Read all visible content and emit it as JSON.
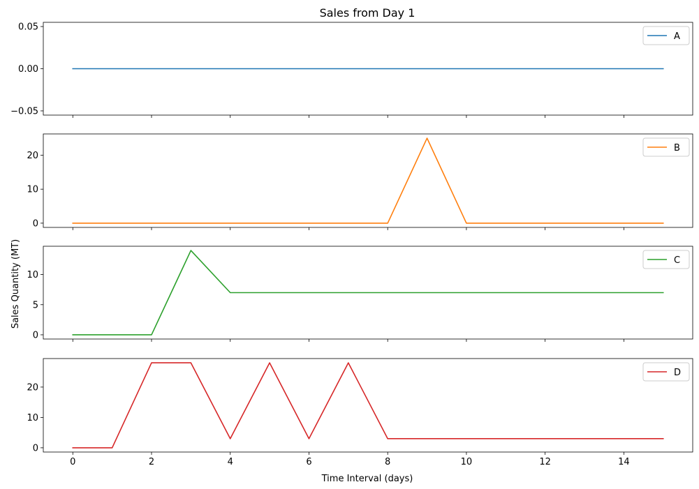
{
  "chart_data": {
    "type": "line",
    "title": "Sales from Day 1",
    "xlabel": "Time Interval (days)",
    "ylabel": "Sales Quantity (MT)",
    "x": [
      0,
      1,
      2,
      3,
      4,
      5,
      6,
      7,
      8,
      9,
      10,
      11,
      12,
      13,
      14,
      15
    ],
    "xlim": [
      -0.75,
      15.75
    ],
    "xticks": [
      0,
      2,
      4,
      6,
      8,
      10,
      12,
      14
    ],
    "xtick_labels": [
      "0",
      "2",
      "4",
      "6",
      "8",
      "10",
      "12",
      "14"
    ],
    "sharex": true,
    "grid": false,
    "legend_position": "upper right",
    "series": [
      {
        "name": "A",
        "color": "#1f77b4",
        "values": [
          0,
          0,
          0,
          0,
          0,
          0,
          0,
          0,
          0,
          0,
          0,
          0,
          0,
          0,
          0,
          0
        ],
        "ylim": [
          -0.055,
          0.055
        ],
        "yticks": [
          -0.05,
          0.0,
          0.05
        ],
        "ytick_labels": [
          "−0.05",
          "0.00",
          "0.05"
        ]
      },
      {
        "name": "B",
        "color": "#ff7f0e",
        "values": [
          0,
          0,
          0,
          0,
          0,
          0,
          0,
          0,
          0,
          25,
          0,
          0,
          0,
          0,
          0,
          0
        ],
        "ylim": [
          -1.25,
          26.25
        ],
        "yticks": [
          0,
          10,
          20
        ],
        "ytick_labels": [
          "0",
          "10",
          "20"
        ]
      },
      {
        "name": "C",
        "color": "#2ca02c",
        "values": [
          0,
          0,
          0,
          14,
          7,
          7,
          7,
          7,
          7,
          7,
          7,
          7,
          7,
          7,
          7,
          7
        ],
        "ylim": [
          -0.7,
          14.7
        ],
        "yticks": [
          0,
          5,
          10
        ],
        "ytick_labels": [
          "0",
          "5",
          "10"
        ]
      },
      {
        "name": "D",
        "color": "#d62728",
        "values": [
          0,
          0,
          28,
          28,
          3,
          28,
          3,
          28,
          3,
          3,
          3,
          3,
          3,
          3,
          3,
          3
        ],
        "ylim": [
          -1.4,
          29.4
        ],
        "yticks": [
          0,
          10,
          20
        ],
        "ytick_labels": [
          "0",
          "10",
          "20"
        ]
      }
    ]
  }
}
